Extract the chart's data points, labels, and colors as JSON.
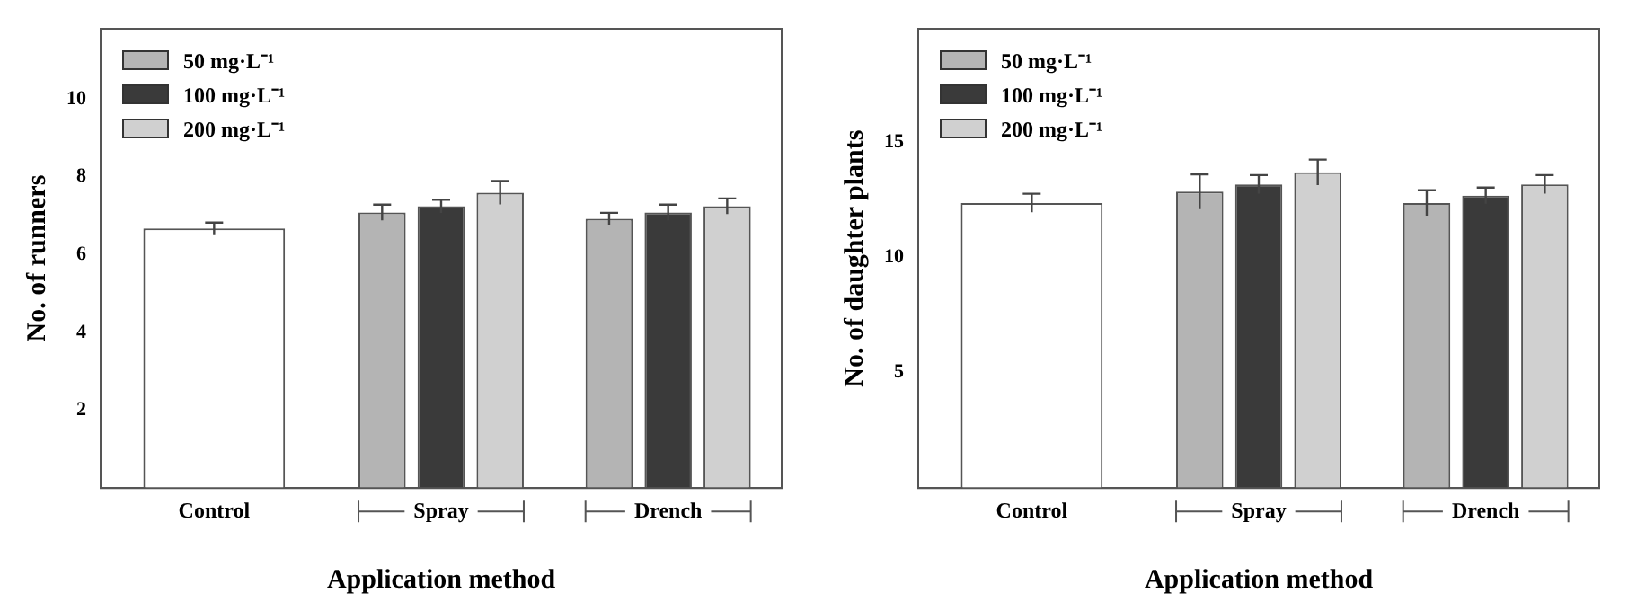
{
  "chart_data": [
    {
      "type": "bar",
      "xlabel": "Application method",
      "ylabel": "No. of runners",
      "categories": [
        "Control",
        "Spray",
        "Drench"
      ],
      "series": [
        {
          "color": "#ffffff",
          "values": [
            6.67,
            null,
            null
          ],
          "errors": [
            0.15,
            null,
            null
          ]
        },
        {
          "name": "50 mg·L⁻¹",
          "color": "#b4b4b4",
          "values": [
            null,
            7.08,
            6.92
          ],
          "errors": [
            null,
            0.2,
            0.15
          ]
        },
        {
          "name": "100 mg·L⁻¹",
          "color": "#3a3a3a",
          "values": [
            null,
            7.24,
            7.08
          ],
          "errors": [
            null,
            0.17,
            0.2
          ]
        },
        {
          "name": "200 mg·L⁻¹",
          "color": "#d0d0d0",
          "values": [
            null,
            7.59,
            7.24
          ],
          "errors": [
            null,
            0.3,
            0.2
          ]
        }
      ],
      "ylim": [
        0,
        11.8
      ],
      "yticks": [
        2,
        4,
        6,
        8,
        10
      ],
      "legend": "top left",
      "grid": false
    },
    {
      "type": "bar",
      "xlabel": "Application method",
      "ylabel": "No. of daughter plants",
      "categories": [
        "Control",
        "Spray",
        "Drench"
      ],
      "series": [
        {
          "color": "#ffffff",
          "values": [
            12.35,
            null,
            null
          ],
          "errors": [
            0.4,
            null,
            null
          ]
        },
        {
          "name": "50 mg·L⁻¹",
          "color": "#b4b4b4",
          "values": [
            null,
            12.84,
            12.35
          ],
          "errors": [
            null,
            0.75,
            0.55
          ]
        },
        {
          "name": "100 mg·L⁻¹",
          "color": "#3a3a3a",
          "values": [
            null,
            13.16,
            12.67
          ],
          "errors": [
            null,
            0.4,
            0.35
          ]
        },
        {
          "name": "200 mg·L⁻¹",
          "color": "#d0d0d0",
          "values": [
            null,
            13.68,
            13.16
          ],
          "errors": [
            null,
            0.55,
            0.4
          ]
        }
      ],
      "ylim": [
        0,
        19.9
      ],
      "yticks": [
        5,
        10,
        15
      ],
      "legend": "top left",
      "grid": false
    }
  ]
}
